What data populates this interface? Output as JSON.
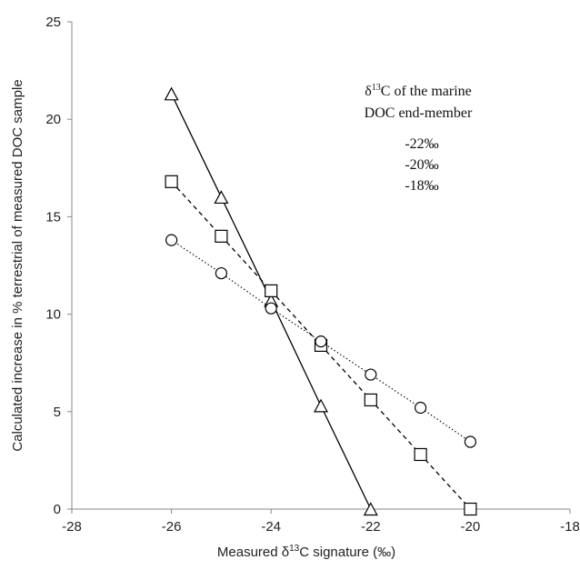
{
  "chart_data": {
    "type": "scatter",
    "xlabel": "Measured δ13C signature (‰)",
    "xlabel_parts": {
      "pre": "Measured δ",
      "sup": "13",
      "post": "C signature (‰)"
    },
    "ylabel": "Calculated increase in % terrestrial of measured DOC sample",
    "xlim": [
      -28,
      -18
    ],
    "ylim": [
      0,
      25
    ],
    "x_ticks": [
      -28,
      -26,
      -24,
      -22,
      -20,
      -18
    ],
    "y_ticks": [
      0,
      5,
      10,
      15,
      20,
      25
    ],
    "grid": false,
    "legend": {
      "position": "top-right",
      "header_line1": {
        "pre": "δ",
        "sup": "13",
        "post": "C of the marine"
      },
      "header_line2": "DOC end-member",
      "entries": [
        "-22‰",
        "-20‰",
        "-18‰"
      ]
    },
    "series": [
      {
        "name": "-22‰",
        "marker": "triangle",
        "line_style": "solid",
        "x": [
          -26,
          -25,
          -24,
          -23,
          -22
        ],
        "y": [
          21.3,
          16.0,
          10.7,
          5.3,
          0
        ]
      },
      {
        "name": "-20‰",
        "marker": "square",
        "line_style": "dashed",
        "x": [
          -26,
          -25,
          -24,
          -23,
          -22,
          -21,
          -20
        ],
        "y": [
          16.8,
          14.0,
          11.2,
          8.4,
          5.6,
          2.8,
          0
        ]
      },
      {
        "name": "-18‰",
        "marker": "circle",
        "line_style": "dotted",
        "x": [
          -26,
          -25,
          -24,
          -23,
          -22,
          -21,
          -20
        ],
        "y": [
          13.8,
          12.1,
          10.3,
          8.6,
          6.9,
          5.2,
          3.45
        ]
      }
    ]
  }
}
